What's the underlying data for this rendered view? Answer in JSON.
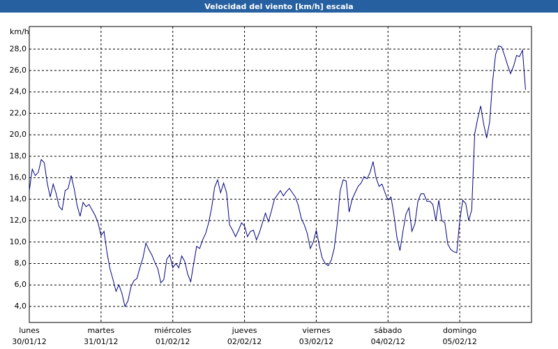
{
  "chart_data": {
    "type": "line",
    "title": "Velocidad del viento [km/h] escala",
    "y_unit": "km/h",
    "color": "#000080",
    "grid": true,
    "xlim": [
      0,
      168
    ],
    "xticks": [
      {
        "value": 0,
        "label": "lunes",
        "sublabel": "30/01/12"
      },
      {
        "value": 24,
        "label": "martes",
        "sublabel": "31/01/12"
      },
      {
        "value": 48,
        "label": "miércoles",
        "sublabel": "01/02/12"
      },
      {
        "value": 72,
        "label": "jueves",
        "sublabel": "02/02/12"
      },
      {
        "value": 96,
        "label": "viernes",
        "sublabel": "03/02/12"
      },
      {
        "value": 120,
        "label": "sábado",
        "sublabel": "04/02/12"
      },
      {
        "value": 144,
        "label": "domingo",
        "sublabel": "05/02/12"
      }
    ],
    "ylim": [
      2.5,
      30.1
    ],
    "yticks": [
      {
        "value": 4,
        "label": "4,0"
      },
      {
        "value": 6,
        "label": "6,0"
      },
      {
        "value": 8,
        "label": "8,0"
      },
      {
        "value": 10,
        "label": "10,0"
      },
      {
        "value": 12,
        "label": "12,0"
      },
      {
        "value": 14,
        "label": "14,0"
      },
      {
        "value": 16,
        "label": "16,0"
      },
      {
        "value": 18,
        "label": "18,0"
      },
      {
        "value": 20,
        "label": "20,0"
      },
      {
        "value": 22,
        "label": "22,0"
      },
      {
        "value": 24,
        "label": "24,0"
      },
      {
        "value": 26,
        "label": "26,0"
      },
      {
        "value": 28,
        "label": "28,0"
      }
    ],
    "x": [
      0,
      1,
      2,
      3,
      4,
      5,
      6,
      7,
      8,
      9,
      10,
      11,
      12,
      13,
      14,
      15,
      16,
      17,
      18,
      19,
      20,
      21,
      22,
      23,
      24,
      25,
      26,
      27,
      28,
      29,
      30,
      31,
      32,
      33,
      34,
      35,
      36,
      37,
      38,
      39,
      40,
      41,
      42,
      43,
      44,
      45,
      46,
      47,
      48,
      49,
      50,
      51,
      52,
      53,
      54,
      55,
      56,
      57,
      58,
      59,
      60,
      61,
      62,
      63,
      64,
      65,
      66,
      67,
      68,
      69,
      70,
      71,
      72,
      73,
      74,
      75,
      76,
      77,
      78,
      79,
      80,
      81,
      82,
      83,
      84,
      85,
      86,
      87,
      88,
      89,
      90,
      91,
      92,
      93,
      94,
      95,
      96,
      97,
      98,
      99,
      100,
      101,
      102,
      103,
      104,
      105,
      106,
      107,
      108,
      109,
      110,
      111,
      112,
      113,
      114,
      115,
      116,
      117,
      118,
      119,
      120,
      121,
      122,
      123,
      124,
      125,
      126,
      127,
      128,
      129,
      130,
      131,
      132,
      133,
      134,
      135,
      136,
      137,
      138,
      139,
      140,
      141,
      142,
      143,
      144,
      145,
      146,
      147,
      148,
      149,
      150,
      151,
      152,
      153,
      154,
      155,
      156,
      157,
      158,
      159,
      160,
      161,
      162,
      163,
      164,
      165,
      166
    ],
    "values": [
      14.8,
      16.8,
      16.2,
      16.5,
      17.7,
      17.4,
      15.5,
      14.2,
      15.4,
      14.5,
      13.3,
      13,
      14.8,
      15,
      16.2,
      15,
      13.4,
      12.4,
      13.7,
      13.3,
      13.5,
      13,
      12.5,
      11.8,
      10.6,
      11,
      9,
      7.5,
      6.5,
      5.4,
      6,
      5.2,
      4,
      4.5,
      5.8,
      6.4,
      6.6,
      7.6,
      8.5,
      9.9,
      9.3,
      8.8,
      8.1,
      7.5,
      6.2,
      6.5,
      8.4,
      8.8,
      7.6,
      8,
      7.6,
      8.7,
      8.2,
      7,
      6.3,
      8,
      9.6,
      9.4,
      10.2,
      10.8,
      11.8,
      13.2,
      15.1,
      15.8,
      14.6,
      15.5,
      14.6,
      11.6,
      11.1,
      10.5,
      11.1,
      11.8,
      11.5,
      10.5,
      11,
      11.1,
      10.2,
      10.9,
      11.8,
      12.7,
      11.9,
      12.9,
      14,
      14.4,
      14.8,
      14.3,
      14.7,
      15,
      14.6,
      14.2,
      13.4,
      12.2,
      11.6,
      10.8,
      9.4,
      10,
      11.1,
      9.7,
      8.5,
      8,
      7.8,
      8.3,
      9.4,
      11.7,
      14.8,
      15.8,
      15.7,
      12.8,
      14,
      14.6,
      15.2,
      15.5,
      16.1,
      15.9,
      16.5,
      17.5,
      16,
      15.2,
      15.4,
      14.6,
      13.9,
      14.2,
      12.5,
      10.4,
      9.2,
      11,
      12.6,
      13.2,
      11,
      11.7,
      13.8,
      14.5,
      14.5,
      13.8,
      13.8,
      13.5,
      12,
      13.9,
      12,
      11.8,
      9.8,
      9.3,
      9.1,
      9,
      12,
      13.9,
      13.6,
      12,
      13,
      20.1,
      21.5,
      22.7,
      21,
      19.7,
      21.2,
      25,
      27.5,
      28.3,
      28.2,
      27.4,
      26.5,
      25.7,
      26.4,
      27.4,
      27.3,
      27.9,
      24.2
    ]
  }
}
